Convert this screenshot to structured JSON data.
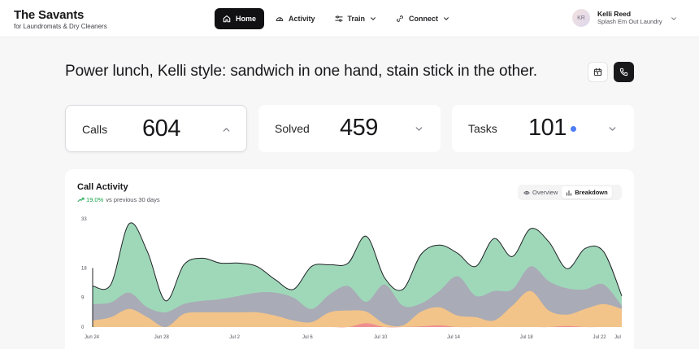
{
  "brand": {
    "title": "The Savants",
    "subtitle": "for Laundromats & Dry Cleaners"
  },
  "nav": [
    {
      "label": "Home",
      "icon": "home-icon",
      "active": true
    },
    {
      "label": "Activity",
      "icon": "gauge-icon"
    },
    {
      "label": "Train",
      "icon": "sliders-icon",
      "dropdown": true
    },
    {
      "label": "Connect",
      "icon": "link-icon",
      "dropdown": true
    }
  ],
  "user": {
    "initials": "KR",
    "name": "Kelli Reed",
    "org": "Splash Em Out Laundry"
  },
  "headline": "Power lunch, Kelli style: sandwich in one hand, stain stick in the other.",
  "stats": [
    {
      "label": "Calls",
      "value": "604",
      "expanded": true
    },
    {
      "label": "Solved",
      "value": "459"
    },
    {
      "label": "Tasks",
      "value": "101",
      "dot": true,
      "dot_color": "#4f7df3"
    }
  ],
  "panel": {
    "title": "Call Activity",
    "trend_pct": "19.0%",
    "trend_text": "vs previous 30 days",
    "toggle": {
      "overview": "Overview",
      "breakdown": "Breakdown",
      "active": "breakdown"
    }
  },
  "colors": {
    "green": "#9fd8b9",
    "gray": "#a9abb6",
    "orange": "#f2c48a",
    "red": "#ef8f8f",
    "accent": "#16a34a"
  },
  "chart_data": {
    "type": "area",
    "stacked": true,
    "y_ticks": [
      0,
      9,
      18,
      33
    ],
    "x_ticks": [
      "Jun 24",
      "Jun 28",
      "Jul 2",
      "Jul 6",
      "Jul 10",
      "Jul 14",
      "Jul 18",
      "Jul 22",
      "Jul"
    ],
    "x_tick_positions": [
      0,
      4,
      8,
      12,
      16,
      20,
      24,
      28,
      29
    ],
    "ylim": [
      0,
      33
    ],
    "series": [
      {
        "color": "#ef8f8f",
        "values": [
          0,
          0,
          0,
          0,
          0,
          0,
          0,
          0,
          0,
          0,
          0,
          0,
          0,
          0,
          0,
          1.2,
          0,
          0,
          0.2,
          0.5,
          0,
          0,
          0,
          0,
          0,
          0,
          0.3,
          0,
          0,
          0
        ]
      },
      {
        "color": "#f2c48a",
        "values": [
          2,
          3,
          5.5,
          3,
          0,
          4,
          4.5,
          4.5,
          4.5,
          4.5,
          3.5,
          2,
          1.5,
          4.5,
          5,
          3.5,
          1,
          0.5,
          4.5,
          5.5,
          3.5,
          3,
          2,
          6.5,
          11,
          5,
          3.5,
          5.5,
          7,
          5.5
        ]
      },
      {
        "color": "#a9abb6",
        "values": [
          5,
          4.5,
          5,
          3,
          4.5,
          3,
          3.5,
          4,
          5,
          6,
          7,
          7,
          4,
          5.5,
          7.5,
          3,
          12,
          6,
          2.5,
          5,
          12,
          6.5,
          9,
          5,
          7.5,
          9,
          8,
          6,
          6,
          1
        ]
      },
      {
        "color": "#9fd8b9",
        "values": [
          5.5,
          5.5,
          21,
          17,
          3.5,
          12,
          13,
          11,
          10,
          8,
          4,
          2.5,
          13,
          9,
          7,
          20,
          2,
          5,
          15,
          14,
          7,
          9,
          16,
          10,
          11.5,
          12,
          6,
          12.5,
          10,
          3
        ]
      }
    ]
  }
}
